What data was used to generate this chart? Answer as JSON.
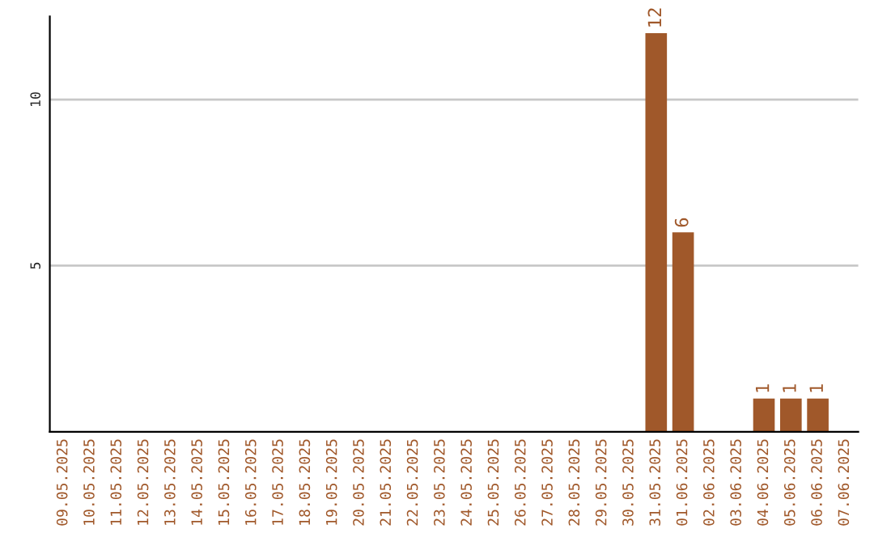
{
  "chart_data": {
    "type": "bar",
    "categories": [
      "09.05.2025",
      "10.05.2025",
      "11.05.2025",
      "12.05.2025",
      "13.05.2025",
      "14.05.2025",
      "15.05.2025",
      "16.05.2025",
      "17.05.2025",
      "18.05.2025",
      "19.05.2025",
      "20.05.2025",
      "21.05.2025",
      "22.05.2025",
      "23.05.2025",
      "24.05.2025",
      "25.05.2025",
      "26.05.2025",
      "27.05.2025",
      "28.05.2025",
      "29.05.2025",
      "30.05.2025",
      "31.05.2025",
      "01.06.2025",
      "02.06.2025",
      "03.06.2025",
      "04.06.2025",
      "05.06.2025",
      "06.06.2025",
      "07.06.2025"
    ],
    "values": [
      0,
      0,
      0,
      0,
      0,
      0,
      0,
      0,
      0,
      0,
      0,
      0,
      0,
      0,
      0,
      0,
      0,
      0,
      0,
      0,
      0,
      0,
      12,
      6,
      0,
      0,
      1,
      1,
      1,
      0
    ],
    "value_labels": [
      null,
      null,
      null,
      null,
      null,
      null,
      null,
      null,
      null,
      null,
      null,
      null,
      null,
      null,
      null,
      null,
      null,
      null,
      null,
      null,
      null,
      null,
      "12",
      "6",
      null,
      null,
      "1",
      "1",
      "1",
      null
    ],
    "color": "#a0582a",
    "ylim": [
      0,
      12.5
    ],
    "yticks": [
      5,
      10
    ],
    "grid": "y",
    "legend": false
  }
}
